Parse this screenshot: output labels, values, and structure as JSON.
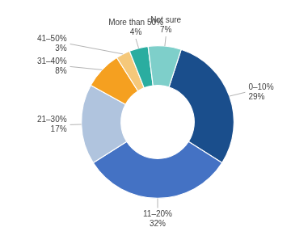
{
  "chart_data": {
    "type": "doughnut",
    "categories": [
      "0–10%",
      "11–20%",
      "21–30%",
      "31–40%",
      "41–50%",
      "More than 50%",
      "Not sure"
    ],
    "values": [
      29,
      32,
      17,
      8,
      3,
      4,
      7
    ],
    "value_labels": [
      "29%",
      "32%",
      "17%",
      "8%",
      "3%",
      "4%",
      "7%"
    ],
    "colors": [
      "#1a4e8c",
      "#4472c4",
      "#b0c4de",
      "#f5a020",
      "#f5c87a",
      "#2aada0",
      "#7ecfca"
    ],
    "data_labels": true
  }
}
